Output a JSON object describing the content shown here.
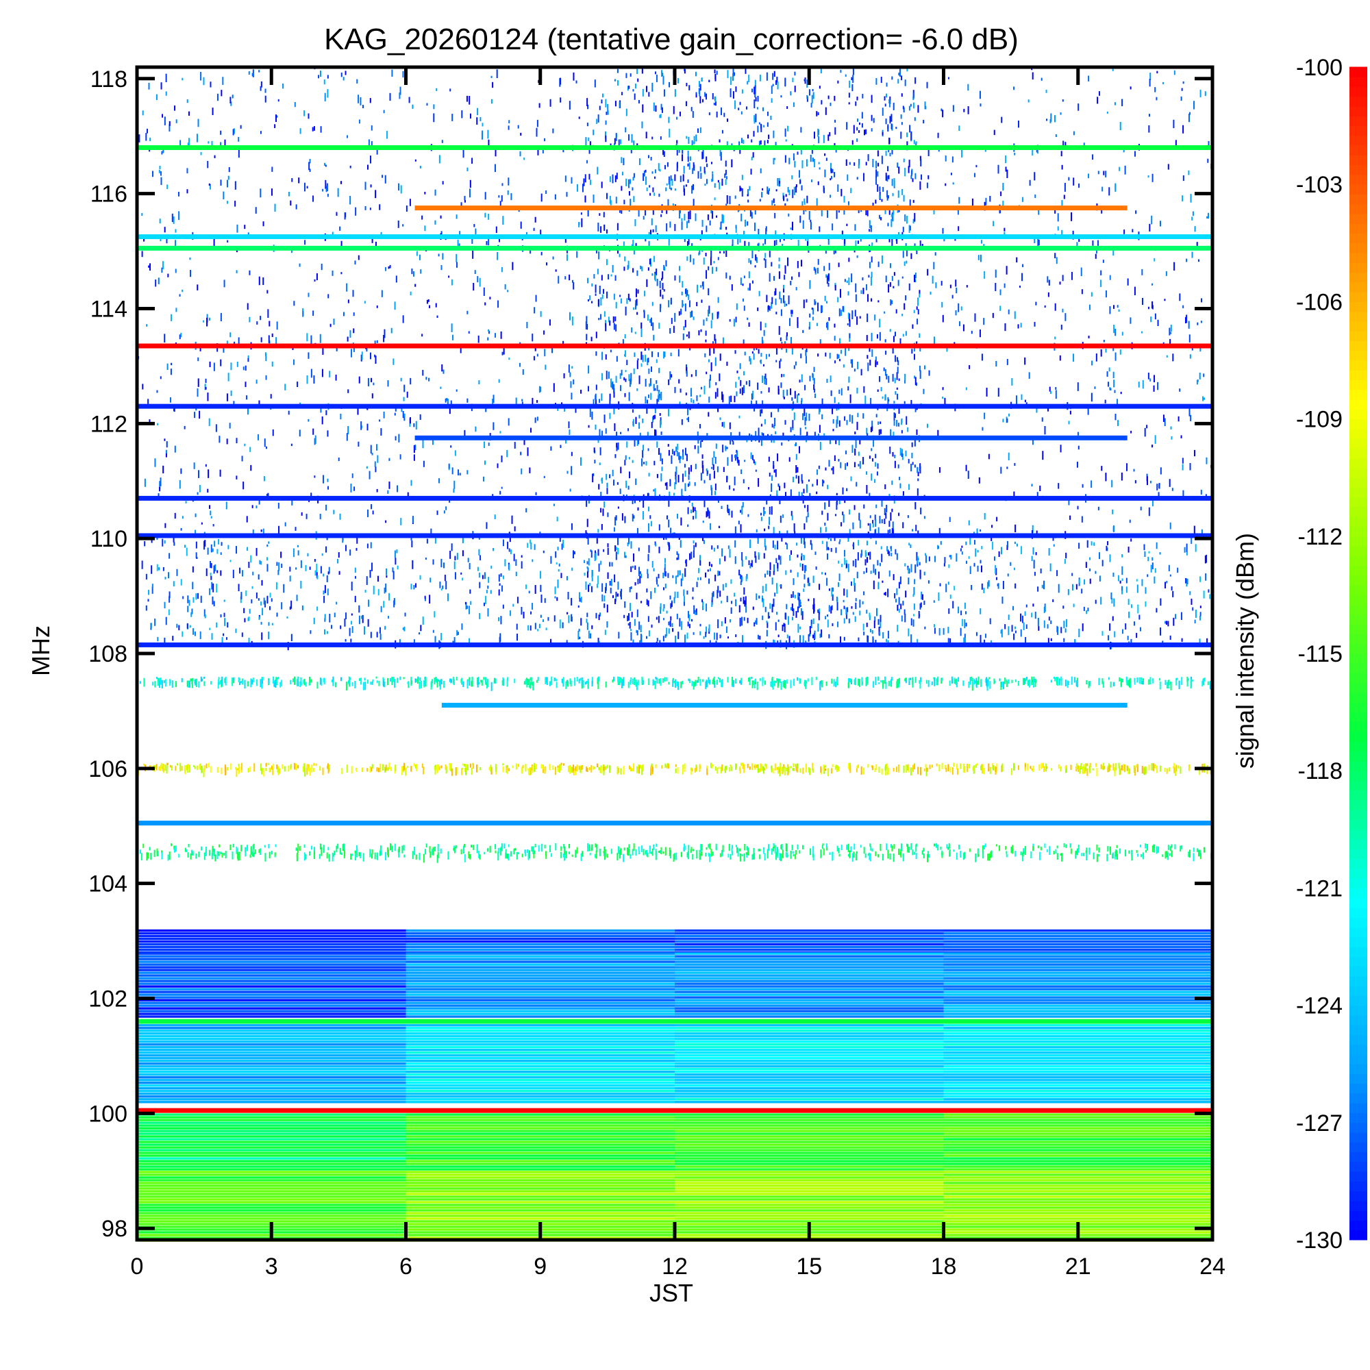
{
  "chart_data": {
    "type": "heatmap",
    "title": "KAG_20260124 (tentative gain_correction= -6.0 dB)",
    "xlabel": "JST",
    "ylabel": "MHz",
    "colorbar_label": "signal intensity (dBm)",
    "xlim": [
      0,
      24
    ],
    "ylim": [
      97.8,
      118.2
    ],
    "clim": [
      -130,
      -100
    ],
    "x_ticks": [
      "0",
      "3",
      "6",
      "9",
      "12",
      "15",
      "18",
      "21",
      "24"
    ],
    "y_ticks": [
      "98",
      "100",
      "102",
      "104",
      "106",
      "108",
      "110",
      "112",
      "114",
      "116",
      "118"
    ],
    "colorbar_ticks": [
      "-100",
      "-103",
      "-106",
      "-109",
      "-112",
      "-115",
      "-118",
      "-121",
      "-124",
      "-127",
      "-130"
    ],
    "colormap": [
      "#0000ff",
      "#00a0ff",
      "#00ffff",
      "#00ff40",
      "#80ff00",
      "#ffff00",
      "#ff8000",
      "#ff0000"
    ],
    "background": "#ffffff",
    "continuous_lines": [
      {
        "freq_mhz": 116.8,
        "start_h": 0,
        "end_h": 24,
        "dbm": -117
      },
      {
        "freq_mhz": 115.75,
        "start_h": 6.2,
        "end_h": 22.1,
        "dbm": -104
      },
      {
        "freq_mhz": 115.25,
        "start_h": 0,
        "end_h": 24,
        "dbm": -123
      },
      {
        "freq_mhz": 115.05,
        "start_h": 0,
        "end_h": 24,
        "dbm": -118
      },
      {
        "freq_mhz": 113.35,
        "start_h": 0,
        "end_h": 24,
        "dbm": -100
      },
      {
        "freq_mhz": 112.3,
        "start_h": 0,
        "end_h": 24,
        "dbm": -129
      },
      {
        "freq_mhz": 111.75,
        "start_h": 6.2,
        "end_h": 22.1,
        "dbm": -128
      },
      {
        "freq_mhz": 110.7,
        "start_h": 0,
        "end_h": 24,
        "dbm": -129
      },
      {
        "freq_mhz": 110.05,
        "start_h": 0,
        "end_h": 24,
        "dbm": -129
      },
      {
        "freq_mhz": 108.15,
        "start_h": 0,
        "end_h": 24,
        "dbm": -129
      },
      {
        "freq_mhz": 107.1,
        "start_h": 6.8,
        "end_h": 22.1,
        "dbm": -125
      },
      {
        "freq_mhz": 105.05,
        "start_h": 0,
        "end_h": 24,
        "dbm": -126
      },
      {
        "freq_mhz": 101.6,
        "start_h": 0,
        "end_h": 24,
        "dbm": -117
      },
      {
        "freq_mhz": 100.05,
        "start_h": 0,
        "end_h": 24,
        "dbm": -100
      }
    ],
    "broadband_regions": [
      {
        "f_low": 102.8,
        "f_high": 103.2,
        "dbm": -130
      },
      {
        "f_low": 101.7,
        "f_high": 102.8,
        "dbm": -128
      },
      {
        "f_low": 100.2,
        "f_high": 101.6,
        "dbm": -125
      },
      {
        "f_low": 99.0,
        "f_high": 100.0,
        "dbm": -118
      },
      {
        "f_low": 97.8,
        "f_high": 99.0,
        "dbm": -115
      }
    ],
    "sparse_bands": [
      {
        "f_low": 108.2,
        "f_high": 118.2,
        "dbm": -129
      },
      {
        "f_low": 108.2,
        "f_high": 110.0,
        "dbm": -128
      },
      {
        "f_low": 106.1,
        "f_high": 106.0,
        "dbm": -110
      },
      {
        "f_low": 104.5,
        "f_high": 104.7,
        "dbm": -120
      },
      {
        "f_low": 107.5,
        "f_high": 107.6,
        "dbm": -122
      }
    ]
  }
}
